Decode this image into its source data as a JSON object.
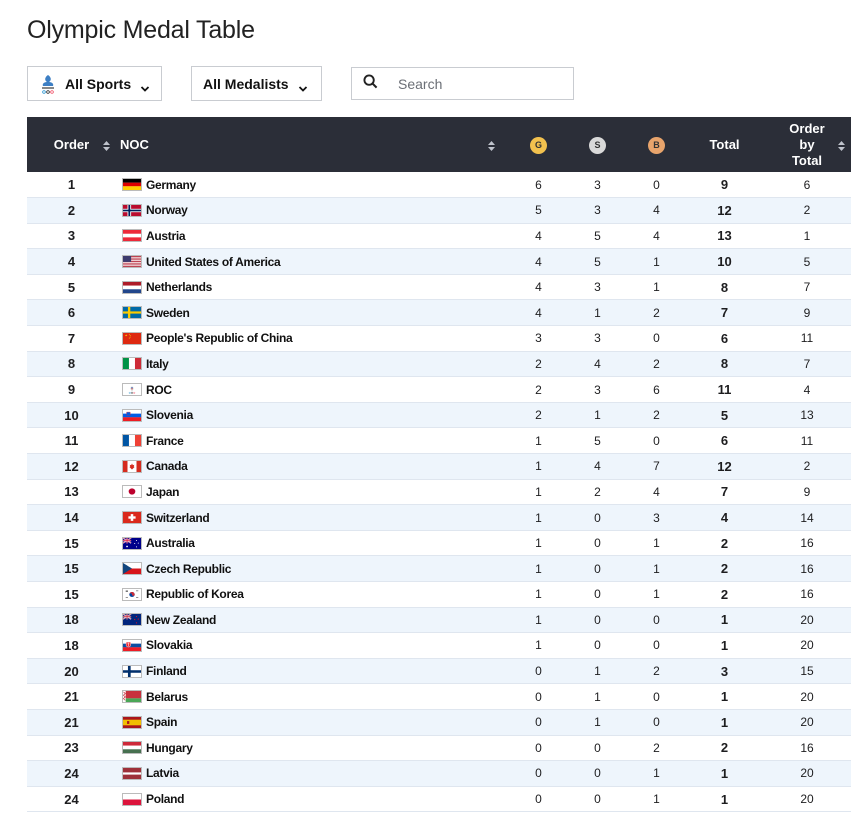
{
  "page": {
    "title": "Olympic Medal Table"
  },
  "filters": {
    "sports_label": "All Sports",
    "medalists_label": "All Medalists",
    "search_placeholder": "Search"
  },
  "table": {
    "headers": {
      "order": "Order",
      "noc": "NOC",
      "gold": "G",
      "silver": "S",
      "bronze": "B",
      "total": "Total",
      "order_by_total_1": "Order",
      "order_by_total_2": "by",
      "order_by_total_3": "Total"
    },
    "rows": [
      {
        "order": "1",
        "country": "Germany",
        "flag": "germany",
        "g": "6",
        "s": "3",
        "b": "0",
        "total": "9",
        "rank": "6"
      },
      {
        "order": "2",
        "country": "Norway",
        "flag": "norway",
        "g": "5",
        "s": "3",
        "b": "4",
        "total": "12",
        "rank": "2"
      },
      {
        "order": "3",
        "country": "Austria",
        "flag": "austria",
        "g": "4",
        "s": "5",
        "b": "4",
        "total": "13",
        "rank": "1"
      },
      {
        "order": "4",
        "country": "United States of America",
        "flag": "usa",
        "g": "4",
        "s": "5",
        "b": "1",
        "total": "10",
        "rank": "5"
      },
      {
        "order": "5",
        "country": "Netherlands",
        "flag": "netherlands",
        "g": "4",
        "s": "3",
        "b": "1",
        "total": "8",
        "rank": "7"
      },
      {
        "order": "6",
        "country": "Sweden",
        "flag": "sweden",
        "g": "4",
        "s": "1",
        "b": "2",
        "total": "7",
        "rank": "9"
      },
      {
        "order": "7",
        "country": "People's Republic of China",
        "flag": "china",
        "g": "3",
        "s": "3",
        "b": "0",
        "total": "6",
        "rank": "11"
      },
      {
        "order": "8",
        "country": "Italy",
        "flag": "italy",
        "g": "2",
        "s": "4",
        "b": "2",
        "total": "8",
        "rank": "7"
      },
      {
        "order": "9",
        "country": "ROC",
        "flag": "roc",
        "g": "2",
        "s": "3",
        "b": "6",
        "total": "11",
        "rank": "4"
      },
      {
        "order": "10",
        "country": "Slovenia",
        "flag": "slovenia",
        "g": "2",
        "s": "1",
        "b": "2",
        "total": "5",
        "rank": "13"
      },
      {
        "order": "11",
        "country": "France",
        "flag": "france",
        "g": "1",
        "s": "5",
        "b": "0",
        "total": "6",
        "rank": "11"
      },
      {
        "order": "12",
        "country": "Canada",
        "flag": "canada",
        "g": "1",
        "s": "4",
        "b": "7",
        "total": "12",
        "rank": "2"
      },
      {
        "order": "13",
        "country": "Japan",
        "flag": "japan",
        "g": "1",
        "s": "2",
        "b": "4",
        "total": "7",
        "rank": "9"
      },
      {
        "order": "14",
        "country": "Switzerland",
        "flag": "switzerland",
        "g": "1",
        "s": "0",
        "b": "3",
        "total": "4",
        "rank": "14"
      },
      {
        "order": "15",
        "country": "Australia",
        "flag": "australia",
        "g": "1",
        "s": "0",
        "b": "1",
        "total": "2",
        "rank": "16"
      },
      {
        "order": "15",
        "country": "Czech Republic",
        "flag": "czech",
        "g": "1",
        "s": "0",
        "b": "1",
        "total": "2",
        "rank": "16"
      },
      {
        "order": "15",
        "country": "Republic of Korea",
        "flag": "korea",
        "g": "1",
        "s": "0",
        "b": "1",
        "total": "2",
        "rank": "16"
      },
      {
        "order": "18",
        "country": "New Zealand",
        "flag": "newzealand",
        "g": "1",
        "s": "0",
        "b": "0",
        "total": "1",
        "rank": "20"
      },
      {
        "order": "18",
        "country": "Slovakia",
        "flag": "slovakia",
        "g": "1",
        "s": "0",
        "b": "0",
        "total": "1",
        "rank": "20"
      },
      {
        "order": "20",
        "country": "Finland",
        "flag": "finland",
        "g": "0",
        "s": "1",
        "b": "2",
        "total": "3",
        "rank": "15"
      },
      {
        "order": "21",
        "country": "Belarus",
        "flag": "belarus",
        "g": "0",
        "s": "1",
        "b": "0",
        "total": "1",
        "rank": "20"
      },
      {
        "order": "21",
        "country": "Spain",
        "flag": "spain",
        "g": "0",
        "s": "1",
        "b": "0",
        "total": "1",
        "rank": "20"
      },
      {
        "order": "23",
        "country": "Hungary",
        "flag": "hungary",
        "g": "0",
        "s": "0",
        "b": "2",
        "total": "2",
        "rank": "16"
      },
      {
        "order": "24",
        "country": "Latvia",
        "flag": "latvia",
        "g": "0",
        "s": "0",
        "b": "1",
        "total": "1",
        "rank": "20"
      },
      {
        "order": "24",
        "country": "Poland",
        "flag": "poland",
        "g": "0",
        "s": "0",
        "b": "1",
        "total": "1",
        "rank": "20"
      }
    ]
  },
  "colors": {
    "header_bg": "#2b2e38",
    "row_alt_bg": "#eef5fc",
    "gold": "#f2c14e",
    "silver": "#d9d9d9",
    "bronze": "#e8a46c"
  },
  "icons": {
    "sports": "olympic-beijing-logo-icon",
    "dropdown": "chevron-down-icon",
    "search": "search-icon",
    "sort": "sort-arrows-icon"
  }
}
